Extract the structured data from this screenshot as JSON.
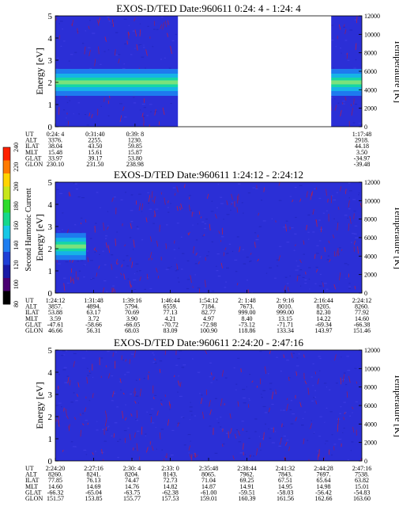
{
  "colorbar": {
    "label": "Second Harmonic Current",
    "ticks": [
      80,
      100,
      120,
      140,
      160,
      180,
      200,
      220,
      240
    ],
    "colors": [
      "#000000",
      "#4b0072",
      "#1a1aa6",
      "#1f3fd6",
      "#1e7ef0",
      "#16c8e6",
      "#16d88c",
      "#2fdb2c",
      "#c8e61a",
      "#ffd400",
      "#ff7a00",
      "#ff2000"
    ]
  },
  "chart_data": [
    {
      "type": "heatmap",
      "title": "EXOS-D/TED   Date:960611  0:24: 4 - 1:24: 4",
      "ylabel": "Energy [eV]",
      "ylabel_right": "Temperature [K]",
      "ylim": [
        0,
        5
      ],
      "ylim_right": [
        0,
        12000
      ],
      "yticks": [
        0,
        1,
        2,
        3,
        4,
        5
      ],
      "yticks_right": [
        0,
        2000,
        4000,
        6000,
        8000,
        10000,
        12000
      ],
      "row_labels": [
        "UT",
        "ALT",
        "ILAT",
        "MLT",
        "GLAT",
        "GLON"
      ],
      "columns": [
        {
          "UT": "0:24: 4",
          "ALT": "3376.",
          "ILAT": "38.04",
          "MLT": "15.48",
          "GLAT": "33.97",
          "GLON": "230.10"
        },
        {
          "UT": "0:31:40",
          "ALT": "2255.",
          "ILAT": "43.50",
          "MLT": "15.61",
          "GLAT": "39.17",
          "GLON": "231.50"
        },
        {
          "UT": "0:39: 8",
          "ALT": "1230.",
          "ILAT": "59.85",
          "MLT": "15.87",
          "GLAT": "53.80",
          "GLON": "238.98"
        },
        {
          "UT": "1:17:48",
          "ALT": "2918.",
          "ILAT": "44.18",
          "MLT": "3.50",
          "GLAT": "-34.97",
          "GLON": "-39.48"
        }
      ],
      "column_positions": [
        0.0,
        0.13,
        0.26,
        1.0
      ],
      "data_gaps": [
        [
          0.4,
          0.9
        ]
      ],
      "band_center_eV": 2.0
    },
    {
      "type": "heatmap",
      "title": "EXOS-D/TED   Date:960611  1:24:12 - 2:24:12",
      "ylabel": "Energy [eV]",
      "ylabel_right": "Temperature [K]",
      "ylim": [
        0,
        5
      ],
      "ylim_right": [
        0,
        12000
      ],
      "yticks": [
        0,
        1,
        2,
        3,
        4,
        5
      ],
      "yticks_right": [
        0,
        2000,
        4000,
        6000,
        8000,
        10000,
        12000
      ],
      "row_labels": [
        "UT",
        "ALT",
        "ILAT",
        "MLT",
        "GLAT",
        "GLON"
      ],
      "columns": [
        {
          "UT": "1:24:12",
          "ALT": "3857.",
          "ILAT": "53.88",
          "MLT": "3.59",
          "GLAT": "-47.61",
          "GLON": "46.66"
        },
        {
          "UT": "1:31:48",
          "ALT": "4894.",
          "ILAT": "63.17",
          "MLT": "3.72",
          "GLAT": "-58.66",
          "GLON": "56.31"
        },
        {
          "UT": "1:39:16",
          "ALT": "5794.",
          "ILAT": "70.69",
          "MLT": "3.90",
          "GLAT": "-66.05",
          "GLON": "68.03"
        },
        {
          "UT": "1:46:44",
          "ALT": "6559.",
          "ILAT": "77.13",
          "MLT": "4.21",
          "GLAT": "-70.72",
          "GLON": "83.09"
        },
        {
          "UT": "1:54:12",
          "ALT": "7184.",
          "ILAT": "82.77",
          "MLT": "4.97",
          "GLAT": "-72.98",
          "GLON": "100.90"
        },
        {
          "UT": "2: 1:48",
          "ALT": "7673.",
          "ILAT": "999.00",
          "MLT": "8.40",
          "GLAT": "-73.12",
          "GLON": "118.86"
        },
        {
          "UT": "2: 9:16",
          "ALT": "8010.",
          "ILAT": "999.00",
          "MLT": "13.15",
          "GLAT": "-71.71",
          "GLON": "133.34"
        },
        {
          "UT": "2:16:44",
          "ALT": "8205.",
          "ILAT": "82.30",
          "MLT": "14.22",
          "GLAT": "-69.34",
          "GLON": "143.97"
        },
        {
          "UT": "2:24:12",
          "ALT": "8260.",
          "ILAT": "77.92",
          "MLT": "14.60",
          "GLAT": "-66.38",
          "GLON": "151.46"
        }
      ],
      "column_positions": [
        0.0,
        0.125,
        0.25,
        0.375,
        0.5,
        0.625,
        0.75,
        0.875,
        1.0
      ],
      "band_center_eV": 2.1,
      "band_extent": [
        0.0,
        0.1
      ]
    },
    {
      "type": "heatmap",
      "title": "EXOS-D/TED   Date:960611  2:24:20 - 2:47:16",
      "ylabel": "Energy [eV]",
      "ylabel_right": "Temperature [K]",
      "ylim": [
        0,
        5
      ],
      "ylim_right": [
        0,
        12000
      ],
      "yticks": [
        0,
        1,
        2,
        3,
        4,
        5
      ],
      "yticks_right": [
        0,
        2000,
        4000,
        6000,
        8000,
        10000,
        12000
      ],
      "row_labels": [
        "UT",
        "ALT",
        "ILAT",
        "MLT",
        "GLAT",
        "GLON"
      ],
      "columns": [
        {
          "UT": "2:24:20",
          "ALT": "8260.",
          "ILAT": "77.85",
          "MLT": "14.60",
          "GLAT": "-66.32",
          "GLON": "151.57"
        },
        {
          "UT": "2:27:16",
          "ALT": "8241.",
          "ILAT": "76.13",
          "MLT": "14.69",
          "GLAT": "-65.04",
          "GLON": "153.85"
        },
        {
          "UT": "2:30: 4",
          "ALT": "8204.",
          "ILAT": "74.47",
          "MLT": "14.76",
          "GLAT": "-63.75",
          "GLON": "155.77"
        },
        {
          "UT": "2:33: 0",
          "ALT": "8143.",
          "ILAT": "72.73",
          "MLT": "14.82",
          "GLAT": "-62.38",
          "GLON": "157.53"
        },
        {
          "UT": "2:35:48",
          "ALT": "8065.",
          "ILAT": "71.04",
          "MLT": "14.87",
          "GLAT": "-61.00",
          "GLON": "159.01"
        },
        {
          "UT": "2:38:44",
          "ALT": "7962.",
          "ILAT": "69.25",
          "MLT": "14.91",
          "GLAT": "-59.51",
          "GLON": "160.39"
        },
        {
          "UT": "2:41:32",
          "ALT": "7843.",
          "ILAT": "67.51",
          "MLT": "14.95",
          "GLAT": "-58.03",
          "GLON": "161.56"
        },
        {
          "UT": "2:44:28",
          "ALT": "7697.",
          "ILAT": "65.64",
          "MLT": "14.98",
          "GLAT": "-56.42",
          "GLON": "162.66"
        },
        {
          "UT": "2:47:16",
          "ALT": "7538.",
          "ILAT": "63.82",
          "MLT": "15.01",
          "GLAT": "-54.83",
          "GLON": "163.60"
        }
      ],
      "column_positions": [
        0.0,
        0.125,
        0.25,
        0.375,
        0.5,
        0.625,
        0.75,
        0.875,
        1.0
      ]
    }
  ]
}
